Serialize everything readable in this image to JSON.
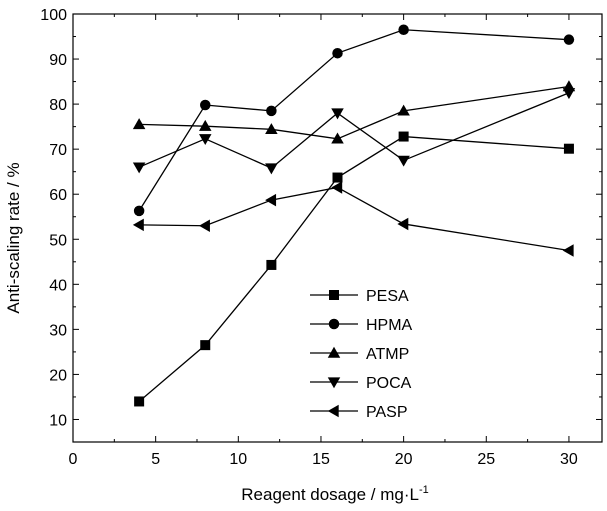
{
  "chart_data": {
    "type": "line",
    "xlabel": "Reagent dosage / mg·L",
    "xlabel_superscript": "-1",
    "ylabel": "Anti-scaling rate / %",
    "xlim": [
      0,
      32
    ],
    "ylim": [
      5,
      100
    ],
    "x_ticks": [
      0,
      5,
      10,
      15,
      20,
      25,
      30
    ],
    "y_ticks": [
      10,
      20,
      30,
      40,
      50,
      60,
      70,
      80,
      90,
      100
    ],
    "grid": false,
    "legend_position": "lower-right",
    "line_color": "#000000",
    "series": [
      {
        "name": "PESA",
        "marker": "square",
        "x": [
          4,
          8,
          12,
          16,
          20,
          30
        ],
        "y": [
          14,
          26.5,
          44.3,
          63.7,
          72.8,
          70.1
        ]
      },
      {
        "name": "HPMA",
        "marker": "circle",
        "x": [
          4,
          8,
          12,
          16,
          20,
          30
        ],
        "y": [
          56.3,
          79.8,
          78.5,
          91.3,
          96.5,
          94.3
        ]
      },
      {
        "name": "ATMP",
        "marker": "triangle-up",
        "x": [
          4,
          8,
          12,
          16,
          20,
          30
        ],
        "y": [
          75.5,
          75.1,
          74.4,
          72.3,
          78.5,
          83.9
        ]
      },
      {
        "name": "POCA",
        "marker": "triangle-down",
        "x": [
          4,
          8,
          12,
          16,
          20,
          30
        ],
        "y": [
          66,
          72.3,
          65.8,
          78,
          67.5,
          82.5
        ]
      },
      {
        "name": "PASP",
        "marker": "triangle-left",
        "x": [
          4,
          8,
          12,
          16,
          20,
          30
        ],
        "y": [
          53.2,
          53,
          58.7,
          61.5,
          53.4,
          47.5
        ]
      }
    ]
  }
}
